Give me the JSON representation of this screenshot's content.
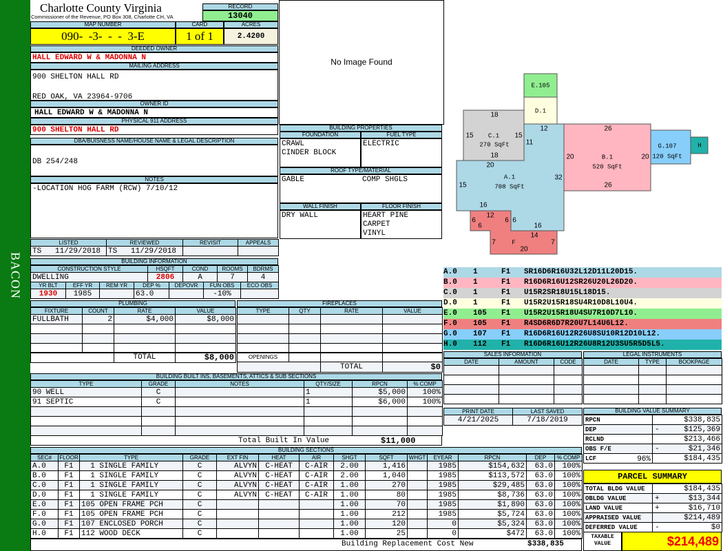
{
  "sidebar_label": "BACON",
  "county": {
    "title": "Charlotte County Virginia",
    "subtitle": "Commissioner of the Revenue, PO Box 308, Charlotte CH, VA"
  },
  "record": {
    "label": "RECORD",
    "value": "13040"
  },
  "map": {
    "map_label": "MAP NUMBER",
    "map_value": "090-  -3-  -  -  3-E",
    "card_label": "CARD",
    "card_value": "1 of 1",
    "acres_label": "ACRES",
    "acres_value": "2.4200"
  },
  "owner": {
    "deeded_label": "DEEDED OWNER",
    "deeded_value": "HALL EDWARD W & MADONNA N",
    "mailing_label": "MAILING ADDRESS",
    "mailing_line1": "900 SHELTON HALL RD",
    "mailing_line2": "RED OAK, VA 23964-9706",
    "owner_id_label": "OWNER ID",
    "owner_id_value": "HALL EDWARD W & MADONNA N",
    "physical_label": "PHYSICAL 911 ADDRESS",
    "physical_value": "900 SHELTON HALL RD"
  },
  "dba": {
    "label": "DBA/BUISNESS NAME/HOUSE NAME & LEGAL DESCRIPTION",
    "value": "DB 254/248"
  },
  "notes": {
    "label": "NOTES",
    "value": "-LOCATION HOG FARM (RCW) 7/10/12"
  },
  "image": {
    "text": "No Image Found"
  },
  "props": {
    "title": "BUILDING PROPERTIES",
    "foundation_label": "FOUNDATION",
    "foundation": [
      "CRAWL",
      "CINDER BLOCK"
    ],
    "fuel_label": "FUEL TYPE",
    "fuel": "ELECTRIC",
    "roof_label": "ROOF TYPE/MATERIAL",
    "roof_type": "GABLE",
    "roof_material": "COMP SHGLS",
    "wall_label": "WALL FINISH",
    "wall": "DRY WALL",
    "floor_label": "FLOOR FINISH",
    "floor": [
      "HEART PINE",
      "CARPET",
      "VINYL"
    ]
  },
  "listing": {
    "headers": [
      "LISTED",
      "REVIEWED",
      "REVISIT",
      "APPEALS"
    ],
    "rows": [
      [
        "TS   11/29/2018",
        "TS   11/29/2018",
        "",
        ""
      ]
    ]
  },
  "building_info": {
    "title": "BUILDING INFORMATION",
    "row1_headers": [
      "CONSTRUCTION STYLE",
      "HSQFT",
      "COND",
      "ROOMS",
      "BDRMS"
    ],
    "row1": [
      "DWELLING",
      "2806",
      "A",
      "7",
      "4"
    ],
    "row2_headers": [
      "YR BLT",
      "EFF YR",
      "REM YR",
      "DEP %",
      "DEPOVR",
      "FUN OBS",
      "ECO OBS"
    ],
    "row2": [
      "1930",
      "1985",
      "",
      "63.0",
      "",
      "-10%",
      ""
    ]
  },
  "plumbing": {
    "title": "PLUMBING",
    "headers": [
      "FIXTURE",
      "COUNT",
      "RATE",
      "VALUE"
    ],
    "rows": [
      [
        "FULLBATH",
        "2",
        "$4,000",
        "$8,000"
      ],
      [
        "",
        "",
        "",
        ""
      ],
      [
        "",
        "",
        "",
        ""
      ],
      [
        "",
        "",
        "",
        ""
      ]
    ],
    "total_label": "TOTAL",
    "total": "$8,000"
  },
  "fireplaces": {
    "title": "FIREPLACES",
    "headers": [
      "TYPE",
      "QTY",
      "RATE",
      "VALUE"
    ],
    "rows": [
      [
        "",
        "",
        "",
        ""
      ],
      [
        "",
        "",
        "",
        ""
      ],
      [
        "",
        "",
        "",
        ""
      ],
      [
        "",
        "",
        "",
        ""
      ]
    ],
    "openings_label": "OPENINGS",
    "total_label": "TOTAL",
    "total": "$0"
  },
  "builtins": {
    "title": "BUILDING BUILT INS, BASEMENTS, ATTICS & SUB SECTIONS",
    "headers": [
      "TYPE",
      "GRADE",
      "NOTES",
      "QTY/SIZE",
      "RPCN",
      "% COMP"
    ],
    "rows": [
      [
        "90 WELL",
        "C",
        "",
        "1",
        "$5,000",
        "100%"
      ],
      [
        "91 SEPTIC",
        "C",
        "",
        "1",
        "$6,000",
        "100%"
      ],
      [
        "",
        "",
        "",
        "",
        "",
        ""
      ],
      [
        "",
        "",
        "",
        "",
        "",
        ""
      ],
      [
        "",
        "",
        "",
        "",
        "",
        ""
      ]
    ],
    "total_label": "Total Built In Value",
    "total": "$11,000"
  },
  "sections": {
    "title": "BUILDING SECTIONS",
    "headers": [
      "SEC#",
      "FLOOR",
      "TYPE",
      "GRADE",
      "EXT FIN",
      "HEAT",
      "AIR",
      "SHGT",
      "SQFT",
      "WHGT",
      "EYEAR",
      "RPCN",
      "DEP",
      "% COMP"
    ],
    "rows": [
      [
        "A.0",
        "F1",
        "  1 SINGLE FAMILY",
        "C",
        "ALVYN",
        "C-HEAT",
        "C-AIR",
        "2.00",
        "1,416",
        "",
        "1985",
        "$154,632",
        "63.0",
        "100%"
      ],
      [
        "B.0",
        "F1",
        "  1 SINGLE FAMILY",
        "C",
        "ALVYN",
        "C-HEAT",
        "C-AIR",
        "2.00",
        "1,040",
        "",
        "1985",
        "$113,572",
        "63.0",
        "100%"
      ],
      [
        "C.0",
        "F1",
        "  1 SINGLE FAMILY",
        "C",
        "ALVYN",
        "C-HEAT",
        "C-AIR",
        "1.00",
        "270",
        "",
        "1985",
        "$29,485",
        "63.0",
        "100%"
      ],
      [
        "D.0",
        "F1",
        "  1 SINGLE FAMILY",
        "C",
        "ALVYN",
        "C-HEAT",
        "C-AIR",
        "1.00",
        "80",
        "",
        "1985",
        "$8,736",
        "63.0",
        "100%"
      ],
      [
        "E.0",
        "F1",
        "105 OPEN FRAME PCH",
        "C",
        "",
        "",
        "",
        "1.00",
        "70",
        "",
        "1985",
        "$1,890",
        "63.0",
        "100%"
      ],
      [
        "F.0",
        "F1",
        "105 OPEN FRAME PCH",
        "C",
        "",
        "",
        "",
        "1.00",
        "212",
        "",
        "1985",
        "$5,724",
        "63.0",
        "100%"
      ],
      [
        "G.0",
        "F1",
        "107 ENCLOSED PORCH",
        "C",
        "",
        "",
        "",
        "1.00",
        "120",
        "",
        "0",
        "$5,324",
        "63.0",
        "100%"
      ],
      [
        "H.0",
        "F1",
        "112 WOOD DECK",
        "C",
        "",
        "",
        "",
        "1.00",
        "25",
        "",
        "0",
        "$472",
        "63.0",
        "100%"
      ]
    ],
    "total_label": "Building Replacement Cost New",
    "total": "$338,835"
  },
  "sketch": {
    "labels": [
      "E.105",
      "D.1",
      "18",
      "15",
      "C.1",
      "15",
      "270 SqFt",
      "11",
      "18",
      "12",
      "26",
      "20",
      "B.1",
      "20",
      "520 SqFt",
      "26",
      "G.107",
      "120 SqFt",
      "H",
      "20",
      "A.1",
      "708 SqFt",
      "15",
      "32",
      "16",
      "12",
      "6",
      "6",
      "6",
      "6",
      "16",
      "14",
      "7",
      "F",
      "7",
      "20"
    ],
    "colors": {
      "A": "#add8e6",
      "B": "#ffb6c1",
      "C": "#d3d3d3",
      "D": "#ffffe0",
      "E": "#90ee90",
      "F": "#f08080",
      "G": "#87cefa",
      "H": "#20b2aa"
    }
  },
  "section_codes": [
    {
      "sec": "A.0",
      "code": "1",
      "floor": "F1",
      "path": "SR16D6R16U32L12D11L20D15.",
      "color": "#add8e6"
    },
    {
      "sec": "B.0",
      "code": "1",
      "floor": "F1",
      "path": "R16D6R16U12SR26U20L26D20.",
      "color": "#ffb6c1"
    },
    {
      "sec": "C.0",
      "code": "1",
      "floor": "F1",
      "path": "U15R2SR18U15L18D15.",
      "color": "#d3d3d3"
    },
    {
      "sec": "D.0",
      "code": "1",
      "floor": "F1",
      "path": "U15R2U15R18SU4R10D8L10U4.",
      "color": "#ffffe0"
    },
    {
      "sec": "E.0",
      "code": "105",
      "floor": "F1",
      "path": "U15R2U15R18U4SU7R10D7L10.",
      "color": "#90ee90"
    },
    {
      "sec": "F.0",
      "code": "105",
      "floor": "F1",
      "path": "R4SD6R6D7R20U7L14U6L12.",
      "color": "#f08080"
    },
    {
      "sec": "G.0",
      "code": "107",
      "floor": "F1",
      "path": "R16D6R16U12R26U8SU10R12D10L12.",
      "color": "#87cefa"
    },
    {
      "sec": "H.0",
      "code": "112",
      "floor": "F1",
      "path": "R16D6R16U12R26U8R12U3SU5R5D5L5.",
      "color": "#20b2aa"
    }
  ],
  "sales": {
    "title": "SALES INFORMATION",
    "headers": [
      "DATE",
      "AMOUNT",
      "CODE"
    ],
    "rows": [
      [
        "",
        "",
        ""
      ],
      [
        "",
        "",
        ""
      ],
      [
        "",
        "",
        ""
      ],
      [
        "",
        "",
        ""
      ]
    ]
  },
  "legal": {
    "title": "LEGAL INSTRUMENTS",
    "headers": [
      "DATE",
      "TYPE",
      "BOOKPAGE"
    ],
    "rows": [
      [
        "",
        "",
        ""
      ],
      [
        "",
        "",
        ""
      ],
      [
        "",
        "",
        ""
      ],
      [
        "",
        "",
        ""
      ]
    ]
  },
  "dates": {
    "headers": [
      "PRINT DATE",
      "LAST SAVED"
    ],
    "rows": [
      [
        "4/21/2025",
        "7/18/2019"
      ]
    ]
  },
  "value_summary": {
    "title": "BUILDING VALUE SUMMARY",
    "rows": [
      {
        "label": "RPCN",
        "pct": "",
        "sign": "",
        "value": "$338,835"
      },
      {
        "label": "DEP",
        "pct": "",
        "sign": "-",
        "value": "$125,369"
      },
      {
        "label": "RCLND",
        "pct": "",
        "sign": "",
        "value": "$213,466"
      },
      {
        "label": "OBS F/E",
        "pct": "",
        "sign": "-",
        "value": "$21,346"
      },
      {
        "label": "LCF",
        "pct": "96%",
        "sign": "",
        "value": "$184,435"
      }
    ]
  },
  "parcel": {
    "title": "PARCEL SUMMARY",
    "rows": [
      {
        "label": "TOTAL BLDG VALUE",
        "sign": "",
        "value": "$184,435"
      },
      {
        "label": "OBLDG VALUE",
        "sign": "+",
        "value": "$13,344"
      },
      {
        "label": "LAND VALUE",
        "sign": "+",
        "value": "$16,710"
      },
      {
        "label": "APPRAISED VALUE",
        "sign": "",
        "value": "$214,489"
      },
      {
        "label": "DEFERRED VALUE",
        "sign": "-",
        "value": "$0"
      }
    ],
    "taxable_label": "TAXABLE VALUE",
    "taxable_value": "$214,489"
  }
}
